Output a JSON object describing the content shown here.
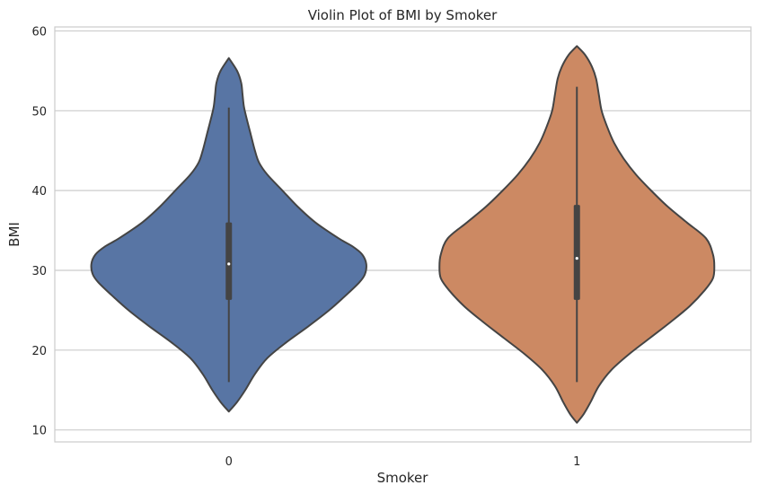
{
  "chart_data": {
    "type": "violin",
    "title": "Violin Plot of BMI by Smoker",
    "xlabel": "Smoker",
    "ylabel": "BMI",
    "ylim": [
      8.5,
      60.5
    ],
    "yticks": [
      "10",
      "20",
      "30",
      "40",
      "50",
      "60"
    ],
    "categories": [
      "0",
      "1"
    ],
    "grid": "horizontal",
    "colors": [
      "#5875a4",
      "#cc8963"
    ],
    "outline_color": "#444444",
    "grid_color": "#cccccc",
    "violins": [
      {
        "category": "0",
        "stats": {
          "min": 16.0,
          "q1": 26.3,
          "median": 30.8,
          "q3": 36.0,
          "max": 50.4
        },
        "range": [
          12.3,
          56.6
        ],
        "density": [
          [
            12.3,
            0.0
          ],
          [
            13.5,
            0.06
          ],
          [
            15.0,
            0.12
          ],
          [
            17.0,
            0.19
          ],
          [
            19.0,
            0.28
          ],
          [
            21.0,
            0.42
          ],
          [
            23.0,
            0.58
          ],
          [
            25.0,
            0.73
          ],
          [
            27.0,
            0.86
          ],
          [
            28.5,
            0.95
          ],
          [
            29.5,
            0.99
          ],
          [
            30.8,
            1.0
          ],
          [
            32.0,
            0.97
          ],
          [
            33.0,
            0.9
          ],
          [
            34.0,
            0.8
          ],
          [
            36.0,
            0.63
          ],
          [
            38.0,
            0.5
          ],
          [
            40.0,
            0.39
          ],
          [
            42.0,
            0.28
          ],
          [
            43.5,
            0.22
          ],
          [
            45.0,
            0.19
          ],
          [
            47.0,
            0.16
          ],
          [
            49.0,
            0.13
          ],
          [
            50.5,
            0.11
          ],
          [
            52.0,
            0.1
          ],
          [
            53.5,
            0.09
          ],
          [
            55.0,
            0.06
          ],
          [
            56.6,
            0.0
          ]
        ]
      },
      {
        "category": "1",
        "stats": {
          "min": 16.0,
          "q1": 26.3,
          "median": 31.5,
          "q3": 38.2,
          "max": 53.0
        },
        "range": [
          10.9,
          58.1
        ],
        "density": [
          [
            10.9,
            0.0
          ],
          [
            12.0,
            0.05
          ],
          [
            13.5,
            0.1
          ],
          [
            15.5,
            0.16
          ],
          [
            17.5,
            0.25
          ],
          [
            19.5,
            0.38
          ],
          [
            21.5,
            0.53
          ],
          [
            23.5,
            0.68
          ],
          [
            25.5,
            0.82
          ],
          [
            27.5,
            0.93
          ],
          [
            29.0,
            0.99
          ],
          [
            30.5,
            1.0
          ],
          [
            32.0,
            0.99
          ],
          [
            34.0,
            0.94
          ],
          [
            36.0,
            0.8
          ],
          [
            38.0,
            0.66
          ],
          [
            40.0,
            0.54
          ],
          [
            42.0,
            0.43
          ],
          [
            44.0,
            0.34
          ],
          [
            46.0,
            0.27
          ],
          [
            48.0,
            0.22
          ],
          [
            50.0,
            0.18
          ],
          [
            52.0,
            0.16
          ],
          [
            54.0,
            0.14
          ],
          [
            55.5,
            0.11
          ],
          [
            57.0,
            0.06
          ],
          [
            58.1,
            0.0
          ]
        ]
      }
    ]
  }
}
